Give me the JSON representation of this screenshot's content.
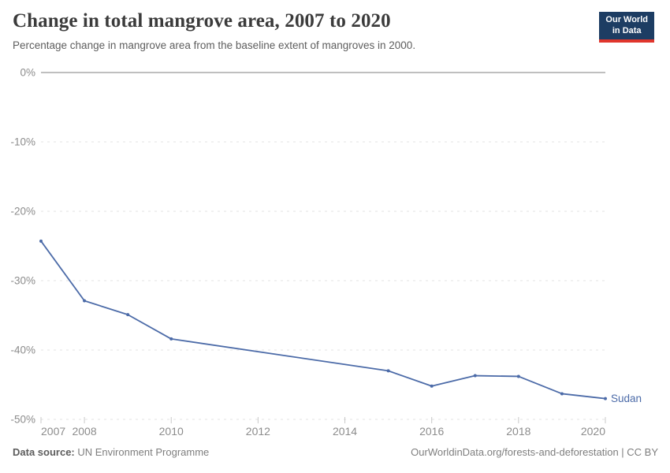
{
  "header": {
    "title": "Change in total mangrove area, 2007 to 2020",
    "subtitle": "Percentage change in mangrove area from the baseline extent of mangroves in 2000.",
    "logo": {
      "line1": "Our World",
      "line2": "in Data"
    }
  },
  "chart_data": {
    "type": "line",
    "title": "Change in total mangrove area, 2007 to 2020",
    "xlabel": "",
    "ylabel": "",
    "xlim": [
      2007,
      2020
    ],
    "ylim": [
      -50,
      0
    ],
    "grid": "horizontal dashed gridlines, solid line at 0%",
    "legend_position": "end-of-line label",
    "series": [
      {
        "name": "Sudan",
        "color": "#4c6ba8",
        "x": [
          2007,
          2008,
          2009,
          2010,
          2015,
          2016,
          2017,
          2018,
          2019,
          2020
        ],
        "y": [
          -24.3,
          -32.9,
          -34.9,
          -38.4,
          -43.0,
          -45.2,
          -43.7,
          -43.8,
          -46.3,
          -47.0
        ]
      }
    ],
    "yticks": [
      {
        "value": 0,
        "label": "0%"
      },
      {
        "value": -10,
        "label": "-10%"
      },
      {
        "value": -20,
        "label": "-20%"
      },
      {
        "value": -30,
        "label": "-30%"
      },
      {
        "value": -40,
        "label": "-40%"
      },
      {
        "value": -50,
        "label": "-50%"
      }
    ],
    "xticks": [
      {
        "value": 2007,
        "label": "2007"
      },
      {
        "value": 2008,
        "label": "2008"
      },
      {
        "value": 2010,
        "label": "2010"
      },
      {
        "value": 2012,
        "label": "2012"
      },
      {
        "value": 2014,
        "label": "2014"
      },
      {
        "value": 2016,
        "label": "2016"
      },
      {
        "value": 2018,
        "label": "2018"
      },
      {
        "value": 2020,
        "label": "2020"
      }
    ]
  },
  "footer": {
    "source_label": "Data source:",
    "source_value": "UN Environment Programme",
    "attribution": "OurWorldinData.org/forests-and-deforestation | CC BY"
  },
  "colors": {
    "accent_line": "#4c6ba8",
    "grid": "#e3e3e3",
    "zero_line": "#b6b6b6",
    "tick_label": "#8c8c8c",
    "tick_mark": "#c8c8c8",
    "logo_bg": "#1d3d63",
    "logo_bar": "#e0362d",
    "title_text": "#3b3b3b",
    "subtitle_text": "#5e5e5e"
  }
}
